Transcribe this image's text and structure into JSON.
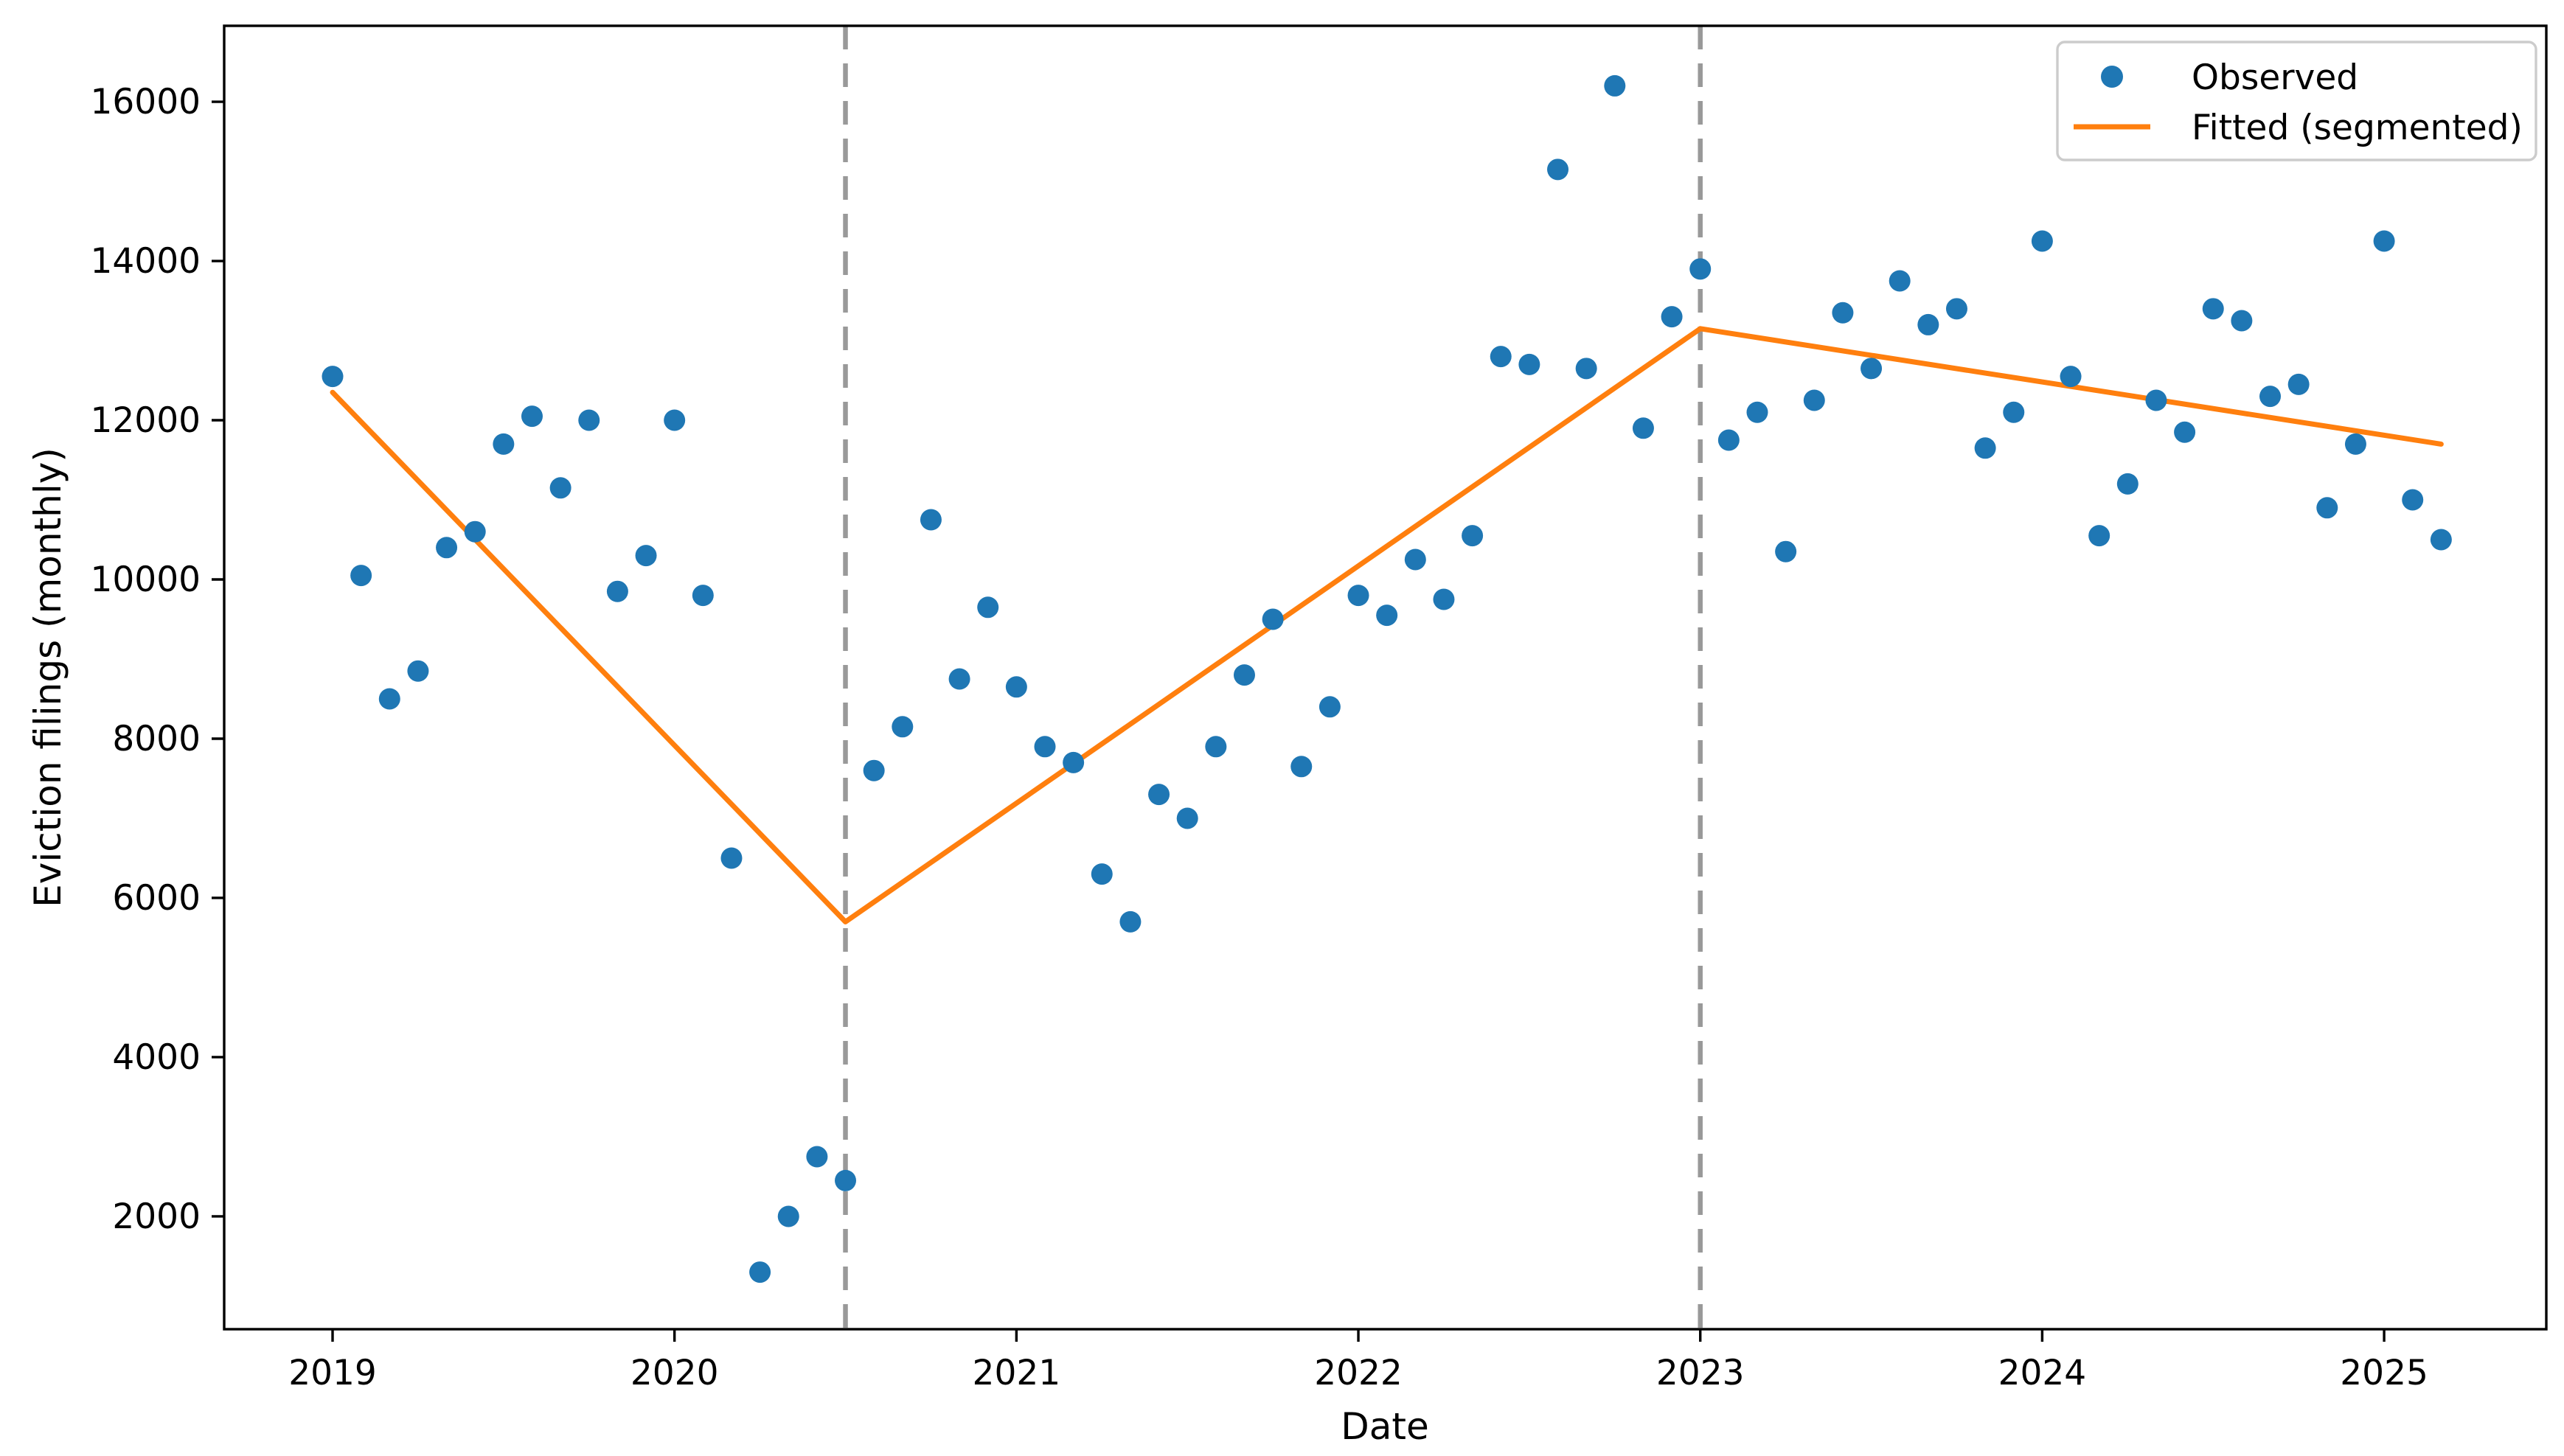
{
  "chart_data": {
    "type": "scatter",
    "title": "",
    "xlabel": "Date",
    "ylabel": "Eviction filings (monthly)",
    "x_tick_labels": [
      "2019",
      "2020",
      "2021",
      "2022",
      "2023",
      "2024",
      "2025"
    ],
    "x_tick_months": [
      "2019-01",
      "2020-01",
      "2021-01",
      "2022-01",
      "2023-01",
      "2024-01",
      "2025-01"
    ],
    "y_ticks": [
      2000,
      4000,
      6000,
      8000,
      10000,
      12000,
      14000,
      16000
    ],
    "ylim": [
      583,
      16954
    ],
    "grid": false,
    "legend_position": "upper right",
    "colors": {
      "observed": "#1f77b4",
      "fitted": "#ff7f0e",
      "breakpoint_vline": "#999999",
      "spine": "#000000",
      "legend_border": "#cccccc"
    },
    "series": [
      {
        "name": "Observed",
        "type": "scatter",
        "color": "#1f77b4",
        "start_month": "2019-01",
        "frequency": "monthly",
        "values": [
          12550,
          10050,
          8500,
          8850,
          10400,
          10600,
          11700,
          12050,
          11150,
          12000,
          9850,
          10300,
          12000,
          9800,
          6500,
          1300,
          2000,
          2750,
          2450,
          7600,
          8150,
          10750,
          8750,
          9650,
          8650,
          7900,
          7700,
          6300,
          5700,
          7300,
          7000,
          7900,
          8800,
          9500,
          7650,
          8400,
          9800,
          9550,
          10250,
          9750,
          10550,
          12800,
          12700,
          15150,
          12650,
          16200,
          11900,
          13300,
          13900,
          11750,
          12100,
          10350,
          12250,
          13350,
          12650,
          13750,
          13200,
          13400,
          11650,
          12100,
          14250,
          12550,
          10550,
          11200,
          12250,
          11850,
          13400,
          13250,
          12300,
          12450,
          10900,
          11700,
          14250,
          11000,
          10500
        ]
      },
      {
        "name": "Fitted (segmented)",
        "type": "line",
        "color": "#ff7f0e",
        "breakpoints": [
          {
            "month": "2019-01",
            "value": 12350
          },
          {
            "month": "2020-07",
            "value": 5700
          },
          {
            "month": "2023-01",
            "value": 13150
          },
          {
            "month": "2025-03",
            "value": 11700
          }
        ]
      }
    ],
    "vlines": [
      {
        "month": "2020-07",
        "style": "dashed",
        "color": "#999999"
      },
      {
        "month": "2023-01",
        "style": "dashed",
        "color": "#999999"
      }
    ]
  }
}
